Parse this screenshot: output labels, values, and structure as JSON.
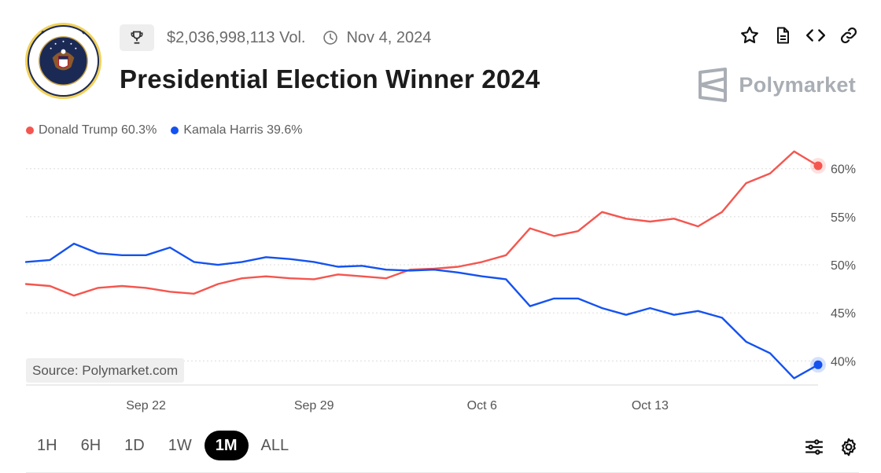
{
  "header": {
    "volume": "$2,036,998,113 Vol.",
    "date": "Nov 4, 2024",
    "title": "Presidential Election Winner 2024",
    "brand": "Polymarket"
  },
  "icons": {
    "seal": "presidential-seal-icon",
    "trophy": "trophy-icon",
    "clock": "clock-icon",
    "actions": [
      "star-icon",
      "document-icon",
      "embed-code-icon",
      "link-icon"
    ],
    "brand": "polymarket-logo-icon",
    "bottom": [
      "sliders-icon",
      "gear-icon"
    ]
  },
  "legend": [
    {
      "label": "Donald Trump 60.3%",
      "color": "#f4564f"
    },
    {
      "label": "Kamala Harris 39.6%",
      "color": "#1452f0"
    }
  ],
  "source": "Source: Polymarket.com",
  "time_ranges": [
    "1H",
    "6H",
    "1D",
    "1W",
    "1M",
    "ALL"
  ],
  "active_range": "1M",
  "chart_data": {
    "type": "line",
    "x": [
      "Sep 17",
      "Sep 18",
      "Sep 19",
      "Sep 20",
      "Sep 21",
      "Sep 22",
      "Sep 23",
      "Sep 24",
      "Sep 25",
      "Sep 26",
      "Sep 27",
      "Sep 28",
      "Sep 29",
      "Sep 30",
      "Oct 1",
      "Oct 2",
      "Oct 3",
      "Oct 4",
      "Oct 5",
      "Oct 6",
      "Oct 7",
      "Oct 8",
      "Oct 9",
      "Oct 10",
      "Oct 11",
      "Oct 12",
      "Oct 13",
      "Oct 14",
      "Oct 15",
      "Oct 16",
      "Oct 17",
      "Oct 18",
      "Oct 19",
      "Oct 20"
    ],
    "x_ticks": [
      "Sep 22",
      "Sep 29",
      "Oct 6",
      "Oct 13"
    ],
    "y_ticks": [
      60,
      55,
      50,
      45,
      40
    ],
    "y_tick_labels": [
      "60%",
      "55%",
      "50%",
      "45%",
      "40%"
    ],
    "ylim": [
      37.5,
      63
    ],
    "grid": true,
    "series": [
      {
        "name": "Donald Trump",
        "color": "#f4564f",
        "values": [
          48.0,
          47.8,
          46.8,
          47.6,
          47.8,
          47.6,
          47.2,
          47.0,
          48.0,
          48.6,
          48.8,
          48.6,
          48.5,
          49.0,
          48.8,
          48.6,
          49.5,
          49.6,
          49.8,
          50.3,
          51.0,
          53.8,
          53.0,
          53.5,
          55.5,
          54.8,
          54.5,
          54.8,
          54.0,
          55.5,
          58.5,
          59.5,
          61.8,
          60.3
        ]
      },
      {
        "name": "Kamala Harris",
        "color": "#1452f0",
        "values": [
          50.3,
          50.5,
          52.2,
          51.2,
          51.0,
          51.0,
          51.8,
          50.3,
          50.0,
          50.3,
          50.8,
          50.6,
          50.3,
          49.8,
          49.9,
          49.5,
          49.4,
          49.5,
          49.2,
          48.8,
          48.5,
          45.7,
          46.5,
          46.5,
          45.5,
          44.8,
          45.5,
          44.8,
          45.2,
          44.5,
          42.0,
          40.8,
          38.2,
          39.6
        ]
      }
    ]
  }
}
